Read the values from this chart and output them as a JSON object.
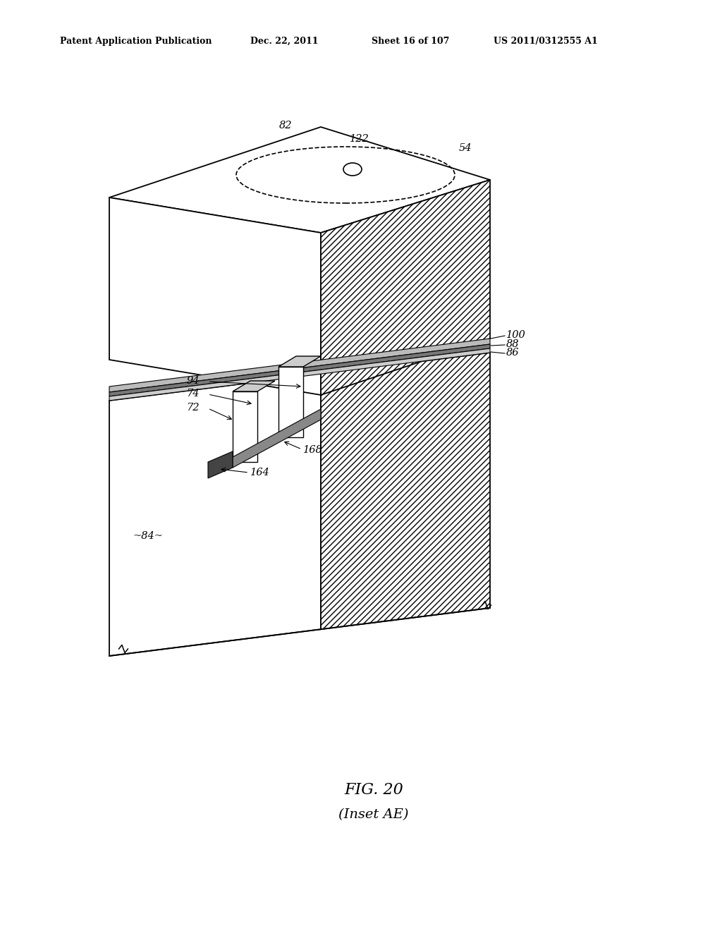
{
  "background_color": "#ffffff",
  "header_text": "Patent Application Publication",
  "header_date": "Dec. 22, 2011",
  "header_sheet": "Sheet 16 of 107",
  "header_patent": "US 2011/0312555 A1",
  "fig_label": "FIG. 20",
  "fig_sublabel": "(Inset AE)"
}
